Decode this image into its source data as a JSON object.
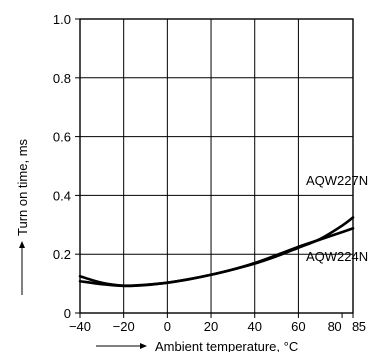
{
  "chart_data": {
    "type": "line",
    "xlabel": "Ambient temperature, °C",
    "ylabel": "Turn on time, ms",
    "xlim": [
      -40,
      85
    ],
    "ylim": [
      0,
      1.0
    ],
    "x_ticks": [
      -40,
      -20,
      0,
      20,
      40,
      60,
      80,
      85
    ],
    "x_tick_labels": [
      "−40",
      "−20",
      "0",
      "20",
      "40",
      "60",
      "80",
      "85"
    ],
    "y_ticks": [
      0,
      0.2,
      0.4,
      0.6,
      0.8,
      1.0
    ],
    "y_tick_labels": [
      "0",
      "0.2",
      "0.4",
      "0.6",
      "0.8",
      "1.0"
    ],
    "grid": true,
    "series": [
      {
        "name": "AQW227N",
        "x": [
          -40,
          -30,
          -20,
          -10,
          0,
          10,
          20,
          30,
          40,
          50,
          60,
          70,
          80,
          85
        ],
        "y": [
          0.125,
          0.103,
          0.093,
          0.096,
          0.103,
          0.115,
          0.13,
          0.148,
          0.168,
          0.193,
          0.222,
          0.252,
          0.297,
          0.325
        ]
      },
      {
        "name": "AQW224N",
        "x": [
          -40,
          -30,
          -20,
          -10,
          0,
          10,
          20,
          30,
          40,
          50,
          60,
          70,
          80,
          85
        ],
        "y": [
          0.108,
          0.098,
          0.092,
          0.095,
          0.103,
          0.115,
          0.13,
          0.148,
          0.17,
          0.197,
          0.225,
          0.25,
          0.275,
          0.288
        ]
      }
    ]
  }
}
